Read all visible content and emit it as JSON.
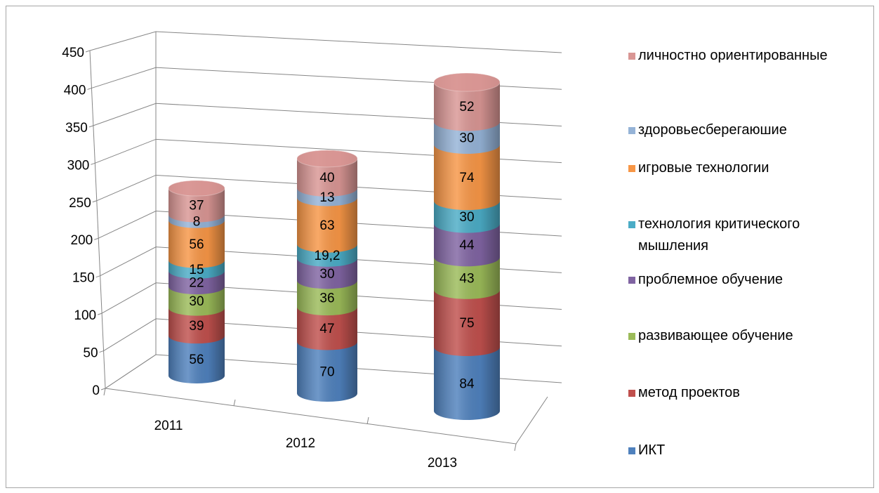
{
  "chart_data": {
    "type": "stacked-cylinder",
    "categories": [
      "2011",
      "2012",
      "2013"
    ],
    "series": [
      {
        "name": "ИКТ",
        "color": "#4f81bd",
        "values": [
          56,
          70,
          84
        ]
      },
      {
        "name": "метод проектов",
        "color": "#c0504d",
        "values": [
          39,
          47,
          75
        ]
      },
      {
        "name": "развивающее обучение",
        "color": "#9bbb59",
        "values": [
          30,
          36,
          43
        ]
      },
      {
        "name": "проблемное обучение",
        "color": "#8064a2",
        "values": [
          22,
          30,
          44
        ]
      },
      {
        "name": "технология критического мышления",
        "color": "#4bacc6",
        "values": [
          15,
          19.2,
          30
        ],
        "value_labels": [
          "15",
          "19,2",
          "30"
        ]
      },
      {
        "name": "игровые технологии",
        "color": "#f79646",
        "values": [
          56,
          63,
          74
        ]
      },
      {
        "name": "здоровьесберегаюшие",
        "color": "#95b3d7",
        "values": [
          8,
          13,
          30
        ]
      },
      {
        "name": "личностно ориентированные",
        "color": "#d99694",
        "values": [
          37,
          40,
          52
        ]
      }
    ],
    "ylim": [
      0,
      450
    ],
    "yticks": [
      0,
      50,
      100,
      150,
      200,
      250,
      300,
      350,
      400,
      450
    ],
    "grid": true,
    "legend": "right"
  }
}
